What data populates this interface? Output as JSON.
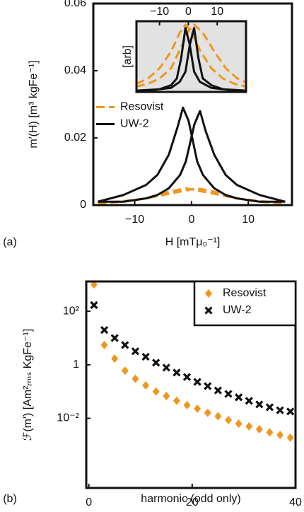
{
  "chart_data": [
    {
      "type": "line",
      "panel_label": "(a)",
      "xlabel": "H [mTμ₀⁻¹]",
      "ylabel": "m′(H) [m³ kgFe⁻¹]",
      "xlim": [
        -17.3,
        17.7
      ],
      "ylim": [
        0,
        0.06
      ],
      "xticks": [
        {
          "value": -10,
          "label": "−10"
        },
        0,
        10
      ],
      "yticks": [
        0,
        0.02,
        0.04,
        0.06
      ],
      "legend": "center left",
      "series": [
        {
          "name": "Resovist",
          "color": "#f0961e",
          "linestyle": "dashed",
          "x": [
            -16.5,
            -12,
            -8,
            -4,
            -1,
            2,
            5,
            8,
            12,
            16.5,
            null,
            -16.5,
            -12,
            -8,
            -5,
            -2,
            1,
            4,
            8,
            12,
            16.5
          ],
          "values": [
            0.0005,
            0.001,
            0.002,
            0.004,
            0.005,
            0.004,
            0.003,
            0.002,
            0.0012,
            0.0005,
            null,
            0.0005,
            0.0012,
            0.002,
            0.003,
            0.004,
            0.005,
            0.004,
            0.002,
            0.001,
            0.0005
          ]
        },
        {
          "name": "UW-2",
          "color": "#111111",
          "linestyle": "solid",
          "x": [
            -16.5,
            -12,
            -8,
            -6,
            -4,
            -2.5,
            -1.5,
            -0.5,
            1,
            2,
            4,
            6,
            8,
            12,
            16.5,
            null,
            -16.5,
            -12,
            -8,
            -6,
            -4,
            -2,
            -1,
            0.5,
            1.5,
            2.5,
            4,
            6,
            8,
            12,
            16.5
          ],
          "values": [
            0.001,
            0.003,
            0.006,
            0.009,
            0.015,
            0.023,
            0.029,
            0.025,
            0.013,
            0.009,
            0.005,
            0.003,
            0.002,
            0.001,
            0.001,
            null,
            0.001,
            0.001,
            0.002,
            0.003,
            0.005,
            0.009,
            0.013,
            0.024,
            0.028,
            0.022,
            0.015,
            0.009,
            0.006,
            0.003,
            0.001
          ]
        }
      ]
    },
    {
      "type": "line",
      "ylabel": "[arb]",
      "xaxis_position": "top",
      "background": "#e2e2e2",
      "xlim": [
        -18,
        20
      ],
      "ylim": [
        0,
        1.05
      ],
      "xticks": [
        {
          "value": -10,
          "label": "−10"
        },
        0,
        10
      ],
      "series": [
        {
          "color": "#f0961e",
          "linestyle": "dashed",
          "x": [
            -18,
            -14,
            -10,
            -6,
            -3,
            -1,
            1,
            4,
            8,
            12,
            16,
            20,
            null,
            -18,
            -14,
            -10,
            -6,
            -3,
            0,
            2,
            5,
            9,
            13,
            17,
            20
          ],
          "values": [
            0.12,
            0.2,
            0.35,
            0.6,
            0.88,
            1,
            0.9,
            0.62,
            0.35,
            0.2,
            0.12,
            0.08,
            null,
            0.08,
            0.12,
            0.2,
            0.35,
            0.62,
            0.9,
            1,
            0.88,
            0.6,
            0.35,
            0.2,
            0.14
          ]
        },
        {
          "color": "#111111",
          "linestyle": "solid",
          "x": [
            -18,
            -10,
            -6,
            -4,
            -2.5,
            -1,
            0.5,
            2,
            4,
            8,
            14,
            20,
            null,
            -18,
            -12,
            -6,
            -3,
            -1,
            0.5,
            2,
            3.5,
            5,
            8,
            12,
            20
          ],
          "values": [
            0.02,
            0.04,
            0.1,
            0.2,
            0.5,
            0.95,
            0.7,
            0.3,
            0.15,
            0.06,
            0.03,
            0.02,
            null,
            0.02,
            0.03,
            0.06,
            0.15,
            0.3,
            0.7,
            0.95,
            0.5,
            0.2,
            0.1,
            0.04,
            0.02
          ]
        }
      ]
    },
    {
      "type": "scatter",
      "panel_label": "(b)",
      "xlabel": "harmonic (odd only)",
      "ylabel": "ℱ(m′) [Am²ᵣₘₛ KgFe⁻¹]",
      "xlim": [
        -0.5,
        40
      ],
      "ylim": [
        2.5e-05,
        1300
      ],
      "ylog": true,
      "xticks": [
        0,
        20,
        40
      ],
      "yticks": [
        {
          "value": 0.01,
          "label": "10⁻²"
        },
        1,
        {
          "value": 100,
          "label": "10²"
        }
      ],
      "legend": "upper right",
      "x": [
        1,
        3,
        5,
        7,
        9,
        11,
        13,
        15,
        17,
        19,
        21,
        23,
        25,
        27,
        29,
        31,
        33,
        35,
        37,
        39
      ],
      "series": [
        {
          "name": "Resovist",
          "color": "#f0961e",
          "marker": "diamond",
          "values": [
            1000,
            5.5,
            1.7,
            0.6,
            0.3,
            0.17,
            0.1,
            0.068,
            0.045,
            0.031,
            0.023,
            0.016,
            0.012,
            0.0086,
            0.0063,
            0.005,
            0.0039,
            0.003,
            0.0024,
            0.0019
          ]
        },
        {
          "name": "UW-2",
          "color": "#111111",
          "marker": "x",
          "values": [
            170,
            20,
            10,
            5.5,
            3.2,
            2,
            1.2,
            0.78,
            0.51,
            0.35,
            0.23,
            0.16,
            0.11,
            0.082,
            0.061,
            0.045,
            0.033,
            0.026,
            0.02,
            0.018
          ]
        }
      ]
    }
  ]
}
